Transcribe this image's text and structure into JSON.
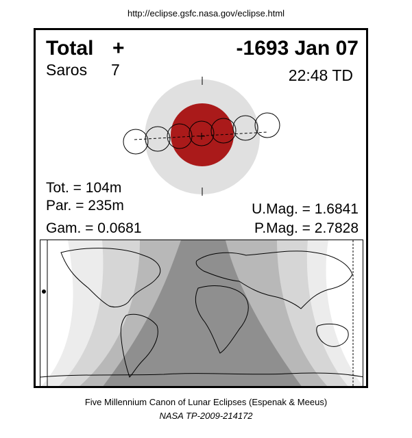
{
  "header_url": "http://eclipse.gsfc.nasa.gov/eclipse.html",
  "eclipse": {
    "type_label": "Total",
    "type_symbol": "+",
    "date": "-1693 Jan 07",
    "saros_label": "Saros",
    "saros_number": "7",
    "time": "22:48 TD"
  },
  "stats": {
    "tot": "Tot. = 104m",
    "par": "Par. = 235m",
    "gam": "Gam. = 0.0681",
    "umag": "U.Mag. = 1.6841",
    "pmag": "P.Mag. = 2.7828"
  },
  "colors": {
    "penumbra": "#e0e0e0",
    "umbra": "#aa1a1a",
    "map_dark": "#8f8f8f",
    "map_mid": "#b8b8b8",
    "map_light": "#d6d6d6",
    "map_lighter": "#ececec"
  },
  "moon_path_points": 7,
  "footer": {
    "line1": "Five Millennium Canon of Lunar Eclipses (Espenak & Meeus)",
    "line2": "NASA TP-2009-214172"
  }
}
